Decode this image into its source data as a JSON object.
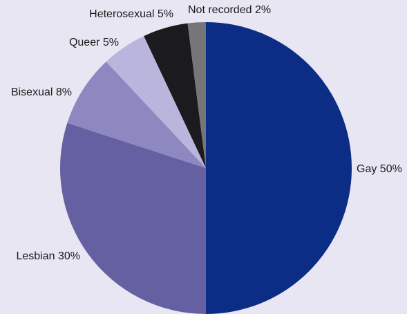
{
  "chart_data": {
    "type": "pie",
    "start_angle_deg": 0,
    "direction": "clockwise",
    "legend": "none",
    "slices": [
      {
        "label": "Gay 50%",
        "category": "Gay",
        "value": 50,
        "color": "#0b2d86"
      },
      {
        "label": "Lesbian 30%",
        "category": "Lesbian",
        "value": 30,
        "color": "#6460a1"
      },
      {
        "label": "Bisexual 8%",
        "category": "Bisexual",
        "value": 8,
        "color": "#8d88c0"
      },
      {
        "label": "Queer 5%",
        "category": "Queer",
        "value": 5,
        "color": "#bab5dc"
      },
      {
        "label": "Heterosexual 5%",
        "category": "Heterosexual",
        "value": 5,
        "color": "#1b1a1f"
      },
      {
        "label": "Not recorded 2%",
        "category": "Not recorded",
        "value": 2,
        "color": "#76767a"
      }
    ]
  }
}
